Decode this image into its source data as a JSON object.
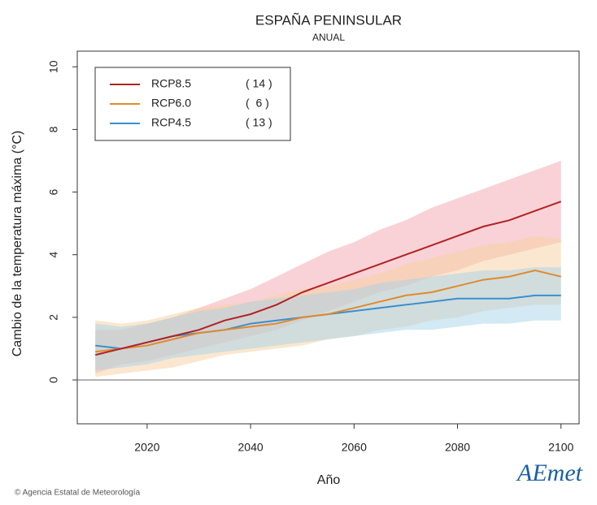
{
  "chart_data": {
    "type": "line",
    "title": "ESPAÑA PENINSULAR",
    "subtitle": "ANUAL",
    "xlabel": "Año",
    "ylabel": "Cambio de la temperatura máxima (°C)",
    "x": [
      2010,
      2015,
      2020,
      2025,
      2030,
      2035,
      2040,
      2045,
      2050,
      2055,
      2060,
      2065,
      2070,
      2075,
      2080,
      2085,
      2090,
      2095,
      2100
    ],
    "xlim": [
      2006.5,
      2103.5
    ],
    "xticks": [
      2020,
      2040,
      2060,
      2080,
      2100
    ],
    "ylim": [
      -1.4,
      10.5
    ],
    "yticks": [
      0,
      2,
      4,
      6,
      8,
      10
    ],
    "hline": 0,
    "series": [
      {
        "name": "RCP8.5",
        "legend_count": "( 14 )",
        "color": "#b22222",
        "band_color": "#f4a6b0",
        "values": [
          0.8,
          1.0,
          1.2,
          1.4,
          1.6,
          1.9,
          2.1,
          2.4,
          2.8,
          3.1,
          3.4,
          3.7,
          4.0,
          4.3,
          4.6,
          4.9,
          5.1,
          5.4,
          5.7
        ],
        "lower": [
          0.2,
          0.5,
          0.6,
          0.8,
          1.0,
          1.2,
          1.4,
          1.6,
          1.9,
          2.2,
          2.5,
          2.8,
          3.0,
          3.3,
          3.5,
          3.8,
          4.0,
          4.2,
          4.4
        ],
        "upper": [
          1.6,
          1.6,
          1.8,
          2.0,
          2.3,
          2.6,
          2.9,
          3.3,
          3.7,
          4.1,
          4.4,
          4.8,
          5.1,
          5.5,
          5.8,
          6.1,
          6.4,
          6.7,
          7.0
        ]
      },
      {
        "name": "RCP6.0",
        "legend_count": "(  6 )",
        "color": "#e08a2c",
        "band_color": "#f8d0a0",
        "values": [
          0.9,
          1.0,
          1.1,
          1.3,
          1.5,
          1.6,
          1.7,
          1.8,
          2.0,
          2.1,
          2.3,
          2.5,
          2.7,
          2.8,
          3.0,
          3.2,
          3.3,
          3.5,
          3.3
        ],
        "lower": [
          0.1,
          0.2,
          0.3,
          0.4,
          0.6,
          0.8,
          0.9,
          1.0,
          1.1,
          1.3,
          1.4,
          1.6,
          1.7,
          1.9,
          2.0,
          2.2,
          2.3,
          2.4,
          2.4
        ],
        "upper": [
          1.9,
          1.8,
          1.9,
          2.1,
          2.3,
          2.4,
          2.5,
          2.7,
          2.9,
          3.0,
          3.2,
          3.4,
          3.7,
          3.9,
          4.1,
          4.3,
          4.4,
          4.6,
          4.5
        ]
      },
      {
        "name": "RCP4.5",
        "legend_count": "( 13 )",
        "color": "#3a8fd0",
        "band_color": "#a8d4ea",
        "values": [
          1.1,
          1.0,
          1.2,
          1.4,
          1.5,
          1.6,
          1.8,
          1.9,
          2.0,
          2.1,
          2.2,
          2.3,
          2.4,
          2.5,
          2.6,
          2.6,
          2.6,
          2.7,
          2.7
        ],
        "lower": [
          0.3,
          0.4,
          0.5,
          0.7,
          0.8,
          0.9,
          1.0,
          1.1,
          1.2,
          1.3,
          1.4,
          1.5,
          1.6,
          1.6,
          1.7,
          1.8,
          1.8,
          1.9,
          1.9
        ],
        "upper": [
          1.8,
          1.7,
          1.8,
          2.0,
          2.2,
          2.3,
          2.5,
          2.6,
          2.7,
          2.8,
          2.9,
          3.1,
          3.2,
          3.3,
          3.4,
          3.5,
          3.5,
          3.6,
          3.6
        ]
      }
    ],
    "footer": "© Agencia Estatal de Meteorología",
    "logo": "AEmet"
  }
}
